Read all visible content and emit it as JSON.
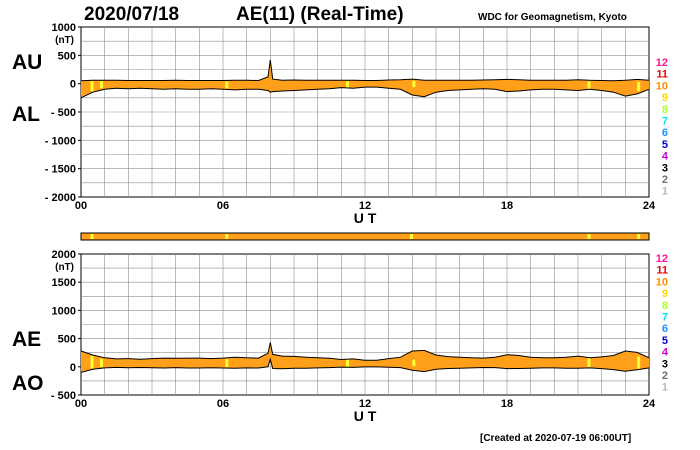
{
  "header": {
    "date": "2020/07/18",
    "title": "AE(11) (Real-Time)",
    "source": "WDC for Geomagnetism, Kyoto"
  },
  "footer": {
    "created": "[Created at 2020-07-19 06:00UT]"
  },
  "colors": {
    "fill": "#ff9f1a",
    "highlight": "#ffff33",
    "grid": "#909090",
    "line": "#000000"
  },
  "station_legend": [
    {
      "label": "12",
      "color": "#ff1493"
    },
    {
      "label": "11",
      "color": "#ee0000"
    },
    {
      "label": "10",
      "color": "#ff8c00"
    },
    {
      "label": "9",
      "color": "#ffd700"
    },
    {
      "label": "8",
      "color": "#adff2f"
    },
    {
      "label": "7",
      "color": "#00e5ee"
    },
    {
      "label": "6",
      "color": "#1e90ff"
    },
    {
      "label": "5",
      "color": "#0000cd"
    },
    {
      "label": "4",
      "color": "#cc00cc"
    },
    {
      "label": "3",
      "color": "#000000"
    },
    {
      "label": "2",
      "color": "#707070"
    },
    {
      "label": "1",
      "color": "#b8b8b8"
    }
  ],
  "chart_data": [
    {
      "type": "area",
      "unit": "(nT)",
      "side_labels": [
        "AU",
        "AL"
      ],
      "xlabel": "U T",
      "xlim": [
        0,
        24
      ],
      "ylim": [
        -2000,
        1000
      ],
      "x_ticks": [
        0,
        6,
        12,
        18,
        24
      ],
      "x_tick_labels": [
        "00",
        "06",
        "12",
        "18",
        "24"
      ],
      "y_ticks": [
        1000,
        500,
        0,
        -500,
        -1000,
        -1500,
        -2000
      ],
      "y_tick_labels": [
        "1000",
        "500",
        "0",
        "- 500",
        "- 1000",
        "- 1500",
        "- 2000"
      ],
      "series": [
        {
          "name": "AU",
          "x": [
            0,
            0.5,
            1,
            1.5,
            2,
            2.5,
            3,
            3.5,
            4,
            4.5,
            5,
            5.5,
            6,
            6.5,
            7,
            7.5,
            7.9,
            8.0,
            8.1,
            8.5,
            9,
            9.5,
            10,
            10.5,
            11,
            11.5,
            12,
            12.5,
            13,
            13.5,
            14,
            14.5,
            15,
            15.5,
            16,
            16.5,
            17,
            17.5,
            18,
            18.5,
            19,
            19.5,
            20,
            20.5,
            21,
            21.5,
            22,
            22.5,
            23,
            23.5,
            24
          ],
          "values": [
            50,
            60,
            60,
            60,
            55,
            55,
            55,
            55,
            60,
            55,
            55,
            55,
            55,
            60,
            60,
            55,
            120,
            420,
            80,
            60,
            65,
            60,
            60,
            60,
            60,
            60,
            55,
            55,
            65,
            70,
            80,
            60,
            60,
            60,
            60,
            60,
            65,
            70,
            75,
            70,
            60,
            60,
            60,
            60,
            70,
            60,
            55,
            50,
            60,
            75,
            60
          ]
        },
        {
          "name": "AL",
          "x": [
            0,
            0.5,
            1,
            1.5,
            2,
            2.5,
            3,
            3.5,
            4,
            4.5,
            5,
            5.5,
            6,
            6.5,
            7,
            7.5,
            7.9,
            8.0,
            8.1,
            8.5,
            9,
            9.5,
            10,
            10.5,
            11,
            11.5,
            12,
            12.5,
            13,
            13.5,
            14,
            14.5,
            15,
            15.5,
            16,
            16.5,
            17,
            17.5,
            18,
            18.5,
            19,
            19.5,
            20,
            20.5,
            21,
            21.5,
            22,
            22.5,
            23,
            23.5,
            24
          ],
          "values": [
            -250,
            -150,
            -100,
            -80,
            -90,
            -80,
            -90,
            -100,
            -90,
            -100,
            -100,
            -90,
            -100,
            -110,
            -100,
            -100,
            -120,
            -150,
            -140,
            -130,
            -120,
            -110,
            -100,
            -90,
            -70,
            -80,
            -60,
            -60,
            -80,
            -100,
            -200,
            -230,
            -150,
            -120,
            -110,
            -100,
            -90,
            -100,
            -140,
            -130,
            -110,
            -100,
            -100,
            -110,
            -120,
            -100,
            -120,
            -150,
            -220,
            -180,
            -100
          ]
        }
      ]
    },
    {
      "type": "area",
      "unit": "(nT)",
      "side_labels": [
        "AE",
        "AO"
      ],
      "xlabel": "U T",
      "xlim": [
        0,
        24
      ],
      "ylim": [
        -500,
        2000
      ],
      "x_ticks": [
        0,
        6,
        12,
        18,
        24
      ],
      "x_tick_labels": [
        "00",
        "06",
        "12",
        "18",
        "24"
      ],
      "y_ticks": [
        2000,
        1500,
        1000,
        500,
        0,
        -500
      ],
      "y_tick_labels": [
        "2000",
        "1500",
        "1000",
        "500",
        "0",
        "- 500"
      ],
      "series": [
        {
          "name": "AE",
          "x": [
            0,
            0.5,
            1,
            1.5,
            2,
            2.5,
            3,
            3.5,
            4,
            4.5,
            5,
            5.5,
            6,
            6.5,
            7,
            7.5,
            7.9,
            8.0,
            8.1,
            8.5,
            9,
            9.5,
            10,
            10.5,
            11,
            11.5,
            12,
            12.5,
            13,
            13.5,
            14,
            14.5,
            15,
            15.5,
            16,
            16.5,
            17,
            17.5,
            18,
            18.5,
            19,
            19.5,
            20,
            20.5,
            21,
            21.5,
            22,
            22.5,
            23,
            23.5,
            24
          ],
          "values": [
            280,
            210,
            160,
            140,
            145,
            135,
            145,
            155,
            150,
            155,
            155,
            145,
            155,
            170,
            160,
            155,
            240,
            430,
            220,
            190,
            185,
            170,
            160,
            150,
            130,
            140,
            115,
            115,
            145,
            170,
            280,
            290,
            210,
            180,
            170,
            160,
            155,
            170,
            215,
            200,
            170,
            160,
            160,
            170,
            190,
            160,
            175,
            200,
            280,
            255,
            160
          ]
        },
        {
          "name": "AO",
          "x": [
            0,
            0.5,
            1,
            1.5,
            2,
            2.5,
            3,
            3.5,
            4,
            4.5,
            5,
            5.5,
            6,
            6.5,
            7,
            7.5,
            7.9,
            8.0,
            8.1,
            8.5,
            9,
            9.5,
            10,
            10.5,
            11,
            11.5,
            12,
            12.5,
            13,
            13.5,
            14,
            14.5,
            15,
            15.5,
            16,
            16.5,
            17,
            17.5,
            18,
            18.5,
            19,
            19.5,
            20,
            20.5,
            21,
            21.5,
            22,
            22.5,
            23,
            23.5,
            24
          ],
          "values": [
            -100,
            -45,
            -20,
            -10,
            -17,
            -12,
            -17,
            -22,
            -15,
            -22,
            -22,
            -17,
            -22,
            -25,
            -20,
            -22,
            0,
            135,
            -30,
            -35,
            -27,
            -25,
            -20,
            -15,
            -5,
            -10,
            -2,
            -2,
            -7,
            -15,
            -60,
            -85,
            -45,
            -30,
            -25,
            -20,
            -12,
            -15,
            -32,
            -30,
            -25,
            -20,
            -20,
            -25,
            -25,
            -20,
            -32,
            -50,
            -80,
            -52,
            -20
          ]
        }
      ]
    }
  ]
}
